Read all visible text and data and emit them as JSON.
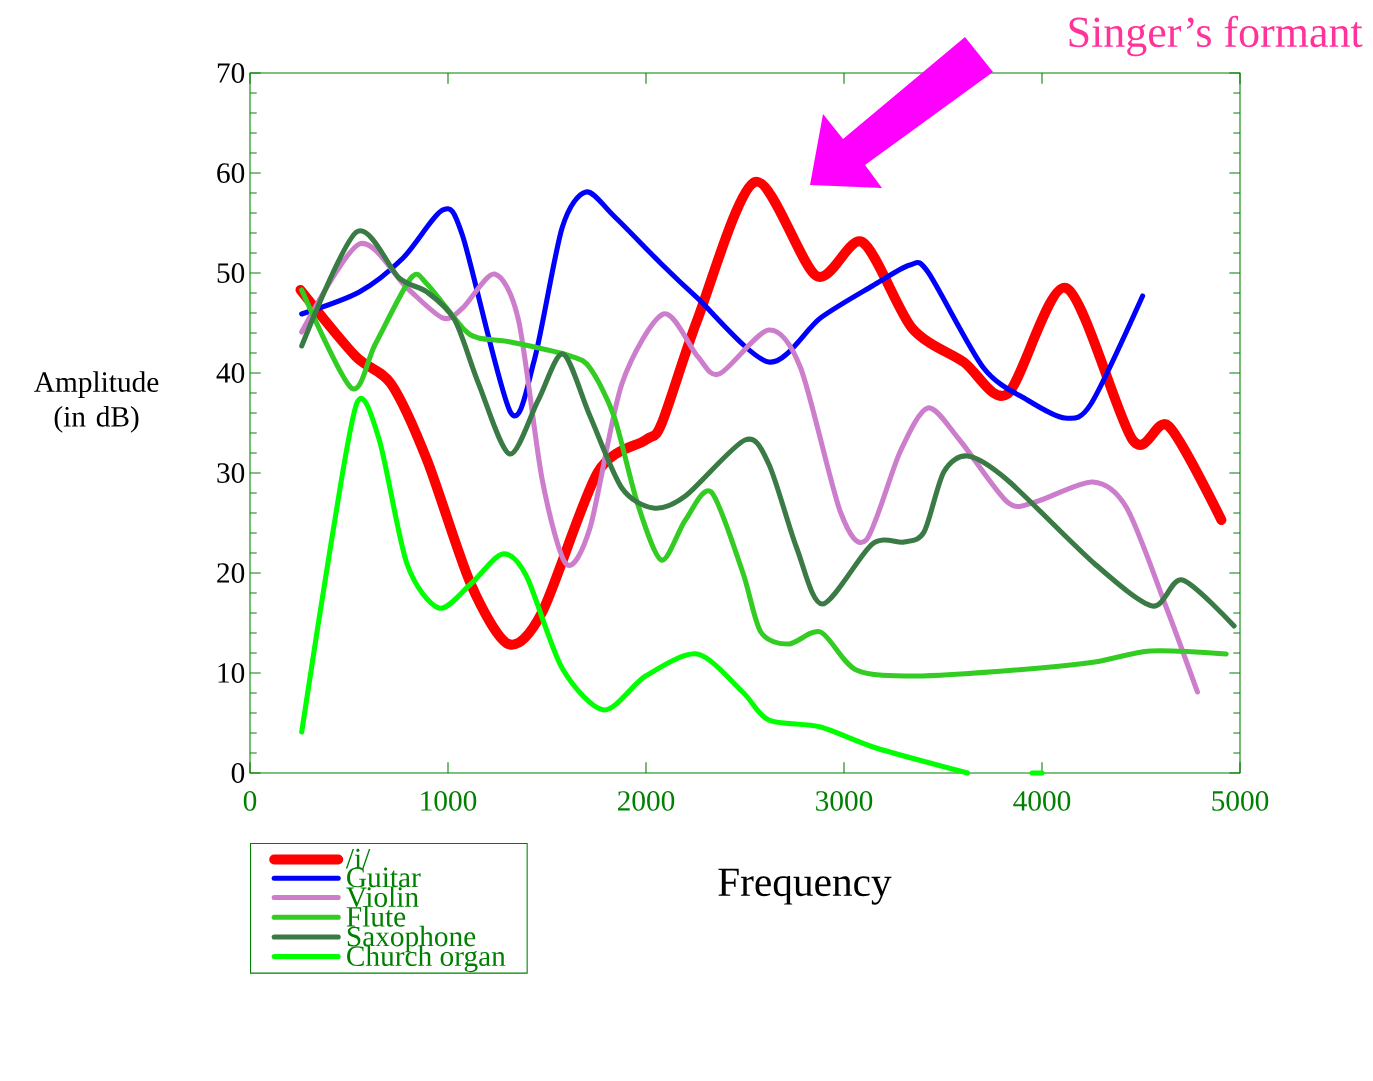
{
  "chart_data": {
    "type": "line",
    "xlabel": "Frequency",
    "ylabel": "Amplitude (in dB)",
    "xlim": [
      0,
      5000
    ],
    "ylim": [
      0,
      70
    ],
    "xticks": [
      0,
      1000,
      2000,
      3000,
      4000,
      5000
    ],
    "yticks": [
      0,
      10,
      20,
      30,
      40,
      50,
      60,
      70
    ],
    "grid": false,
    "legend": "bottom left",
    "marker": "none",
    "line_style": "solid",
    "annotations": [
      "Singer’s formant"
    ],
    "series": [
      {
        "name": "/i/",
        "color": "#ff0000",
        "x": [
          255,
          532,
          713,
          894,
          1115,
          1305,
          1476,
          1757,
          1998,
          2078,
          2259,
          2550,
          2861,
          3092,
          3343,
          3604,
          3825,
          4122,
          4458,
          4639,
          4906
        ],
        "values": [
          48.3,
          41.7,
          38.9,
          31.3,
          18.9,
          12.9,
          16.1,
          30.1,
          33.3,
          34.9,
          45.3,
          59.1,
          49.7,
          53.1,
          44.5,
          41.1,
          37.9,
          48.5,
          33.3,
          34.7,
          25.3
        ]
      },
      {
        "name": "Guitar",
        "color": "#0000ff",
        "x": [
          261,
          552,
          773,
          974,
          1074,
          1315,
          1436,
          1576,
          1697,
          1838,
          2078,
          2259,
          2620,
          2881,
          3143,
          3333,
          3424,
          3705,
          3926,
          4116,
          4247,
          4508
        ],
        "values": [
          45.9,
          48.1,
          51.5,
          56.3,
          53.7,
          36.1,
          41.3,
          54.5,
          58.1,
          55.7,
          50.9,
          47.5,
          41.1,
          45.5,
          48.7,
          50.8,
          50.1,
          40.5,
          37.3,
          35.5,
          36.9,
          47.7
        ]
      },
      {
        "name": "Violin",
        "color": "#cc7ecc",
        "x": [
          261,
          552,
          793,
          974,
          1074,
          1235,
          1356,
          1476,
          1597,
          1717,
          1878,
          2089,
          2259,
          2370,
          2620,
          2781,
          2982,
          3112,
          3283,
          3424,
          3584,
          3825,
          3966,
          4257,
          4428,
          4629,
          4785
        ],
        "values": [
          44.1,
          52.9,
          48.5,
          45.5,
          46.5,
          49.9,
          45.3,
          29.3,
          20.9,
          24.5,
          38.9,
          45.9,
          41.7,
          39.9,
          44.3,
          40.5,
          26.1,
          23.3,
          32.1,
          36.5,
          33.3,
          27.1,
          27.1,
          29.1,
          26.5,
          16.5,
          8.1
        ]
      },
      {
        "name": "Flute",
        "color": "#33cc22",
        "x": [
          261,
          512,
          633,
          813,
          894,
          1074,
          1155,
          1315,
          1617,
          1717,
          1838,
          1958,
          2078,
          2199,
          2329,
          2488,
          2580,
          2721,
          2881,
          3062,
          3363,
          3865,
          4267,
          4548,
          4930
        ],
        "values": [
          48.3,
          38.5,
          42.9,
          49.5,
          48.9,
          44.5,
          43.5,
          43.1,
          41.7,
          40.5,
          35.7,
          26.9,
          21.3,
          25.3,
          28.1,
          20.1,
          14.1,
          12.9,
          14.1,
          10.3,
          9.7,
          10.3,
          11.1,
          12.2,
          11.9
        ]
      },
      {
        "name": "Saxophone",
        "color": "#3a7a45",
        "x": [
          261,
          538,
          753,
          894,
          1034,
          1155,
          1311,
          1456,
          1581,
          1717,
          1878,
          2038,
          2199,
          2500,
          2620,
          2761,
          2892,
          3143,
          3303,
          3404,
          3504,
          3625,
          3825,
          4267,
          4558,
          4709,
          4970
        ],
        "values": [
          42.7,
          54.1,
          49.5,
          48.1,
          45.3,
          38.9,
          31.9,
          37.3,
          41.9,
          35.7,
          28.5,
          26.5,
          27.7,
          33.3,
          30.9,
          22.5,
          16.9,
          22.9,
          23.1,
          24.1,
          30.1,
          31.7,
          29.3,
          20.9,
          16.7,
          19.3,
          14.7
        ]
      },
      {
        "name": "Church organ",
        "color": "#00ff00",
        "x": [
          261,
          412,
          542,
          653,
          793,
          954,
          1115,
          1275,
          1396,
          1576,
          1787,
          1998,
          2259,
          2488,
          2620,
          2881,
          3163,
          3624,
          3800,
          3950,
          4000
        ],
        "values": [
          4.1,
          23.3,
          37.1,
          33.3,
          20.9,
          16.5,
          18.9,
          21.9,
          19.7,
          10.5,
          6.3,
          9.7,
          11.9,
          8.1,
          5.3,
          4.6,
          2.5,
          0,
          null,
          0,
          0
        ]
      }
    ]
  }
}
